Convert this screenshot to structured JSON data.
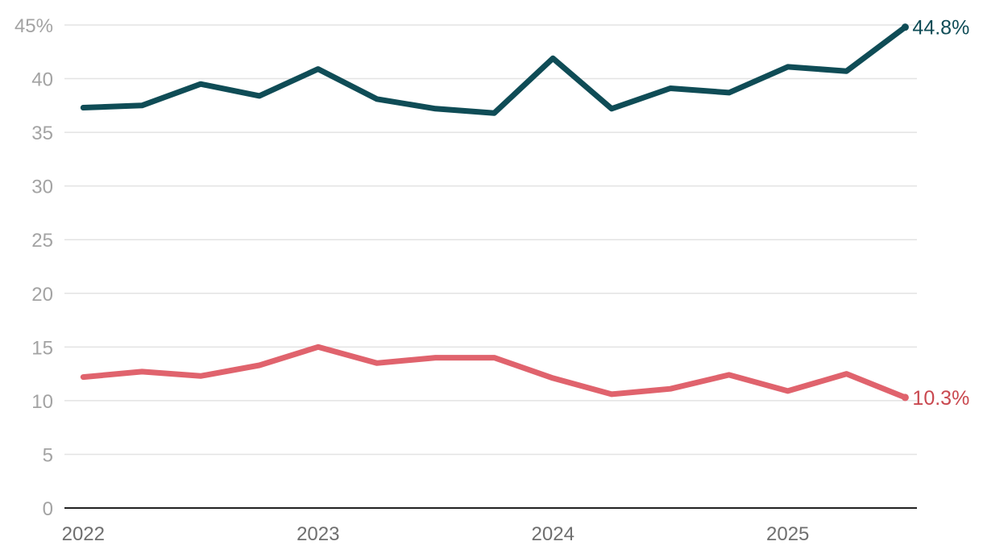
{
  "chart_data": {
    "type": "line",
    "title": "",
    "xlabel": "",
    "ylabel": "",
    "ylim": [
      0,
      45
    ],
    "y_ticks": [
      {
        "value": 45,
        "label": "45%"
      },
      {
        "value": 40,
        "label": "40"
      },
      {
        "value": 35,
        "label": "35"
      },
      {
        "value": 30,
        "label": "30"
      },
      {
        "value": 25,
        "label": "25"
      },
      {
        "value": 20,
        "label": "20"
      },
      {
        "value": 15,
        "label": "15"
      },
      {
        "value": 10,
        "label": "10"
      },
      {
        "value": 5,
        "label": "5"
      },
      {
        "value": 0,
        "label": "0"
      }
    ],
    "x_ticks": [
      {
        "value": 2022.0,
        "label": "2022"
      },
      {
        "value": 2023.0,
        "label": "2023"
      },
      {
        "value": 2024.0,
        "label": "2024"
      },
      {
        "value": 2025.0,
        "label": "2025"
      }
    ],
    "xlim": [
      2021.92,
      2025.55
    ],
    "x": [
      2022.0,
      2022.25,
      2022.5,
      2022.75,
      2023.0,
      2023.25,
      2023.5,
      2023.75,
      2024.0,
      2024.25,
      2024.5,
      2024.75,
      2025.0,
      2025.25,
      2025.5
    ],
    "grid": true,
    "legend": "none",
    "series": [
      {
        "color": "#0f4c56",
        "values": [
          37.3,
          37.5,
          39.5,
          38.4,
          40.9,
          38.1,
          37.2,
          36.8,
          41.9,
          37.2,
          39.1,
          38.7,
          41.1,
          40.7,
          44.8
        ],
        "end_label": "44.8%"
      },
      {
        "color": "#e0636d",
        "label_color": "#c9484f",
        "values": [
          12.2,
          12.7,
          12.3,
          13.3,
          15.0,
          13.5,
          14.0,
          14.0,
          12.1,
          10.6,
          11.1,
          12.4,
          10.9,
          12.5,
          10.3
        ],
        "end_label": "10.3%"
      }
    ]
  }
}
